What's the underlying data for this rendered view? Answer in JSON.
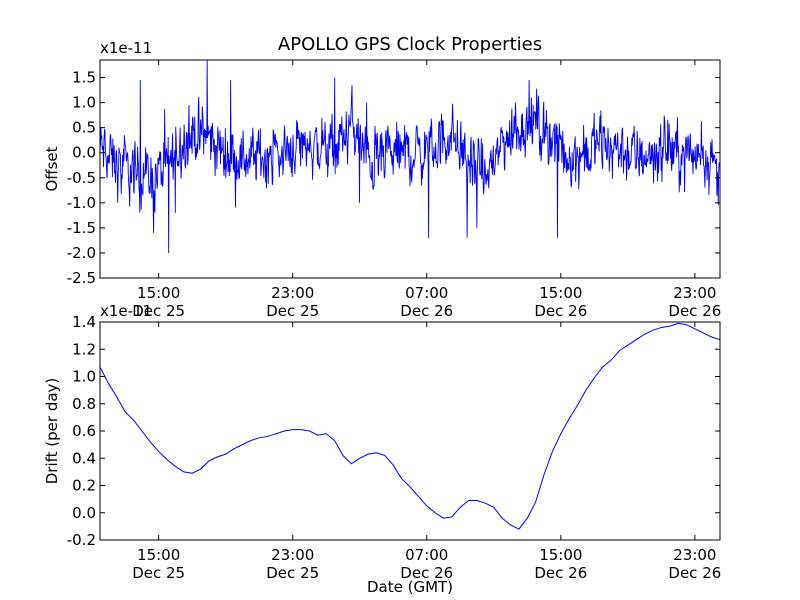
{
  "chart_data": [
    {
      "type": "line",
      "title": "APOLLO GPS Clock Properties",
      "ylabel": "Offset",
      "xlabel": "",
      "y_multiplier": "x1e-11",
      "ylim": [
        -2.5,
        1.85
      ],
      "y_ticks": [
        -2.5,
        -2.0,
        -1.5,
        -1.0,
        -0.5,
        0.0,
        0.5,
        1.0,
        1.5
      ],
      "y_tick_labels": [
        "-2.5",
        "-2.0",
        "-1.5",
        "-1.0",
        "-0.5",
        "0.0",
        "0.5",
        "1.0",
        "1.5"
      ],
      "xlim_hours": [
        11.5,
        48.5
      ],
      "x_ticks": [
        {
          "hour": 15,
          "time": "15:00",
          "date": "Dec 25"
        },
        {
          "hour": 23,
          "time": "23:00",
          "date": "Dec 25"
        },
        {
          "hour": 31,
          "time": "07:00",
          "date": "Dec 26"
        },
        {
          "hour": 39,
          "time": "15:00",
          "date": "Dec 26"
        },
        {
          "hour": 47,
          "time": "23:00",
          "date": "Dec 26"
        }
      ],
      "grid": false,
      "series": [
        {
          "color": "#0000ff",
          "noisy": true,
          "trend_x": [
            11.5,
            12.5,
            13.5,
            14.5,
            15.5,
            16.5,
            17.5,
            18.5,
            19.5,
            20.5,
            21.5,
            22.5,
            23.5,
            24.5,
            25.5,
            26.5,
            27.5,
            28.5,
            29.5,
            30.5,
            31.5,
            32.5,
            33.5,
            34.5,
            35.5,
            36.5,
            37.5,
            38.5,
            39.5,
            40.5,
            41.5,
            42.5,
            43.5,
            44.5,
            45.5,
            46.5,
            47.5,
            48.5
          ],
          "trend_y": [
            0.1,
            -0.3,
            -0.4,
            -0.5,
            -0.3,
            0.3,
            0.4,
            0.1,
            -0.1,
            -0.1,
            -0.05,
            0.0,
            0.2,
            0.1,
            0.0,
            0.6,
            -0.2,
            -0.1,
            0.0,
            0.0,
            0.1,
            0.4,
            -0.2,
            -0.5,
            0.2,
            0.5,
            0.6,
            0.3,
            -0.1,
            0.0,
            0.2,
            0.1,
            -0.1,
            0.0,
            0.1,
            -0.1,
            0.1,
            -0.5
          ],
          "amplitude": 0.45,
          "spikes_x": [
            13.9,
            14.7,
            15.6,
            16.0,
            16.8,
            17.9,
            19.3,
            25.5,
            27.0,
            27.4,
            31.1,
            33.4,
            34.0,
            36.3,
            37.1,
            38.8,
            48.4
          ],
          "spikes_y": [
            1.45,
            -1.6,
            -2.0,
            -1.2,
            0.95,
            1.85,
            1.45,
            1.5,
            -1.0,
            1.0,
            -1.7,
            -1.7,
            -1.5,
            1.0,
            1.45,
            -1.7,
            -1.05
          ]
        }
      ]
    },
    {
      "type": "line",
      "title": "",
      "ylabel": "Drift (per day)",
      "xlabel": "Date (GMT)",
      "y_multiplier": "x1e-11",
      "ylim": [
        -0.2,
        1.4
      ],
      "y_ticks": [
        -0.2,
        0.0,
        0.2,
        0.4,
        0.6,
        0.8,
        1.0,
        1.2,
        1.4
      ],
      "y_tick_labels": [
        "-0.2",
        "0.0",
        "0.2",
        "0.4",
        "0.6",
        "0.8",
        "1.0",
        "1.2",
        "1.4"
      ],
      "xlim_hours": [
        11.5,
        48.5
      ],
      "x_ticks": [
        {
          "hour": 15,
          "time": "15:00",
          "date": "Dec 25"
        },
        {
          "hour": 23,
          "time": "23:00",
          "date": "Dec 25"
        },
        {
          "hour": 31,
          "time": "07:00",
          "date": "Dec 26"
        },
        {
          "hour": 39,
          "time": "15:00",
          "date": "Dec 26"
        },
        {
          "hour": 47,
          "time": "23:00",
          "date": "Dec 26"
        }
      ],
      "grid": false,
      "series": [
        {
          "color": "#0000ff",
          "x": [
            11.5,
            12.0,
            12.5,
            13.0,
            13.5,
            14.0,
            14.5,
            15.0,
            15.5,
            16.0,
            16.5,
            17.0,
            17.5,
            18.0,
            18.5,
            19.0,
            19.5,
            20.0,
            20.5,
            21.0,
            21.5,
            22.0,
            22.5,
            23.0,
            23.5,
            24.0,
            24.5,
            25.0,
            25.5,
            26.0,
            26.5,
            27.0,
            27.5,
            28.0,
            28.5,
            29.0,
            29.5,
            30.0,
            30.5,
            31.0,
            31.5,
            32.0,
            32.5,
            33.0,
            33.5,
            34.0,
            34.5,
            35.0,
            35.5,
            36.0,
            36.5,
            37.0,
            37.5,
            38.0,
            38.5,
            39.0,
            39.5,
            40.0,
            40.5,
            41.0,
            41.5,
            42.0,
            42.5,
            43.0,
            43.5,
            44.0,
            44.5,
            45.0,
            45.5,
            46.0,
            46.5,
            47.0,
            47.5,
            48.0,
            48.5
          ],
          "y": [
            1.07,
            0.95,
            0.85,
            0.74,
            0.68,
            0.6,
            0.52,
            0.45,
            0.39,
            0.34,
            0.3,
            0.29,
            0.32,
            0.38,
            0.41,
            0.43,
            0.47,
            0.5,
            0.53,
            0.55,
            0.56,
            0.58,
            0.6,
            0.61,
            0.61,
            0.6,
            0.57,
            0.58,
            0.53,
            0.42,
            0.36,
            0.4,
            0.43,
            0.44,
            0.42,
            0.35,
            0.25,
            0.19,
            0.12,
            0.05,
            0.0,
            -0.04,
            -0.03,
            0.04,
            0.09,
            0.09,
            0.07,
            0.04,
            -0.04,
            -0.09,
            -0.12,
            -0.04,
            0.08,
            0.28,
            0.45,
            0.58,
            0.69,
            0.79,
            0.9,
            0.99,
            1.07,
            1.12,
            1.19,
            1.23,
            1.27,
            1.31,
            1.34,
            1.36,
            1.37,
            1.39,
            1.38,
            1.35,
            1.32,
            1.29,
            1.27
          ]
        }
      ]
    }
  ]
}
